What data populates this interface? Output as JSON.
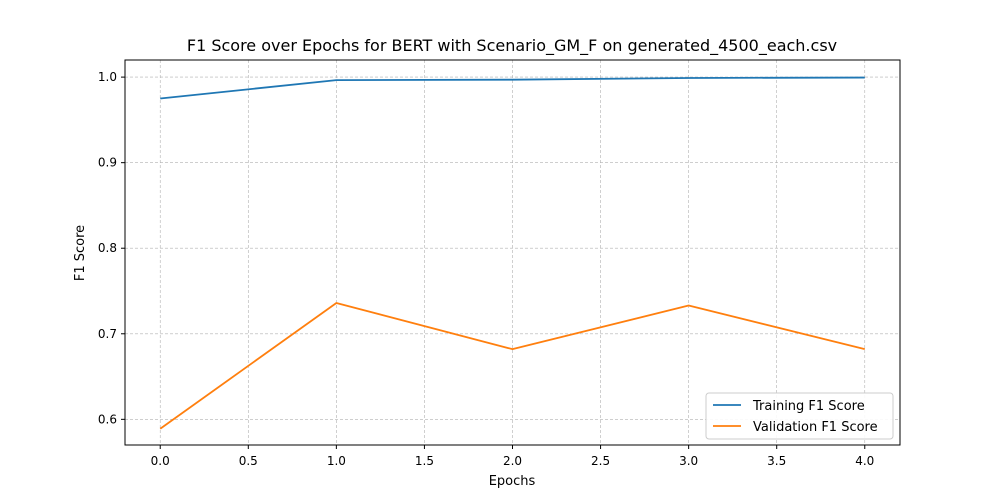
{
  "chart_data": {
    "type": "line",
    "title": "F1 Score over Epochs for BERT with Scenario_GM_F on generated_4500_each.csv",
    "xlabel": "Epochs",
    "ylabel": "F1 Score",
    "xlim": [
      -0.2,
      4.2
    ],
    "ylim": [
      0.57,
      1.02
    ],
    "xticks": [
      0.0,
      0.5,
      1.0,
      1.5,
      2.0,
      2.5,
      3.0,
      3.5,
      4.0
    ],
    "xtick_labels": [
      "0.0",
      "0.5",
      "1.0",
      "1.5",
      "2.0",
      "2.5",
      "3.0",
      "3.5",
      "4.0"
    ],
    "yticks": [
      0.6,
      0.7,
      0.8,
      0.9,
      1.0
    ],
    "ytick_labels": [
      "0.6",
      "0.7",
      "0.8",
      "0.9",
      "1.0"
    ],
    "grid": true,
    "legend_position": "lower-right",
    "x": [
      0,
      1,
      2,
      3,
      4
    ],
    "series": [
      {
        "name": "Training F1 Score",
        "color": "#1f77b4",
        "values": [
          0.975,
          0.9965,
          0.997,
          0.999,
          0.9995
        ]
      },
      {
        "name": "Validation F1 Score",
        "color": "#ff7f0e",
        "values": [
          0.589,
          0.736,
          0.682,
          0.733,
          0.682
        ]
      }
    ]
  }
}
